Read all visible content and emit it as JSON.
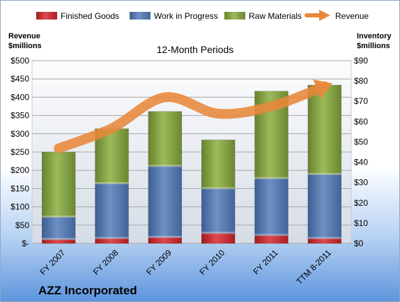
{
  "chart_data": {
    "type": "bar",
    "stacked": true,
    "title": "12-Month Periods",
    "company": "AZZ Incorporated",
    "categories": [
      "FY 2007",
      "FY 2008",
      "FY 2009",
      "FY 2010",
      "FY 2011",
      "TTM 8-2011"
    ],
    "left_axis": {
      "title_line1": "Revenue",
      "title_line2": "$millions",
      "min": 0,
      "max": 500,
      "step": 50,
      "ticks": [
        "$-",
        "$50",
        "$100",
        "$150",
        "$200",
        "$250",
        "$300",
        "$350",
        "$400",
        "$450",
        "$500"
      ]
    },
    "right_axis": {
      "title_line1": "Inventory",
      "title_line2": "$millions",
      "min": 0,
      "max": 90,
      "step": 10,
      "ticks": [
        "$0",
        "$10",
        "$20",
        "$30",
        "$40",
        "$50",
        "$60",
        "$70",
        "$80",
        "$90"
      ]
    },
    "series": [
      {
        "name": "Finished Goods",
        "axis": "right",
        "color": "#C0262B",
        "values": [
          2,
          2.5,
          3,
          5,
          4,
          2.5
        ]
      },
      {
        "name": "Work in Progress",
        "axis": "right",
        "color": "#4F72A8",
        "values": [
          11,
          27,
          35,
          22,
          28,
          31.5
        ]
      },
      {
        "name": "Raw Materials",
        "axis": "right",
        "color": "#7E9B3C",
        "values": [
          32,
          27,
          27,
          24,
          43,
          44
        ]
      }
    ],
    "line_series": {
      "name": "Revenue",
      "axis": "left",
      "color": "#E8883A",
      "values": [
        260,
        315,
        400,
        355,
        375,
        430
      ]
    },
    "legend_position": "top",
    "grid": true
  }
}
